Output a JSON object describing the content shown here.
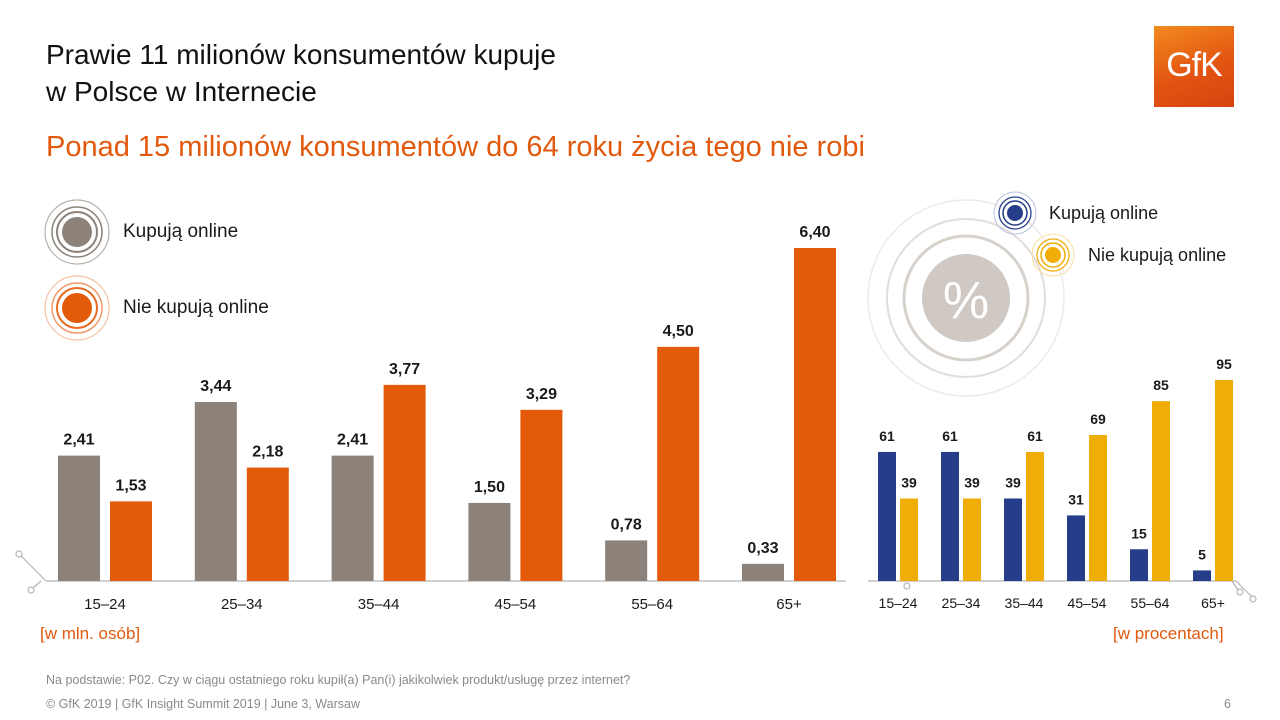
{
  "title_line1": "Prawie 11 milionów konsumentów kupuje",
  "title_line2": "w Polsce w Internecie",
  "subtitle": "Ponad 15 milionów konsumentów do 64 roku życia tego nie robi",
  "logo_text": "GfK",
  "percent_symbol": "%",
  "footnote": "Na podstawie: P02. Czy w ciągu ostatniego roku kupił(a) Pan(i) jakikolwiek produkt/usługę przez internet?",
  "copyright": "© GfK 2019 | GfK Insight Summit 2019 | June 3, Warsaw",
  "page_number": "6",
  "colors": {
    "online_left": "#8c8279",
    "offline_left": "#e35b0a",
    "online_right": "#263e8a",
    "offline_right": "#f0ad08",
    "accent": "#e0590c"
  },
  "chart_data": [
    {
      "type": "bar",
      "categories": [
        "15–24",
        "25–34",
        "35–44",
        "45–54",
        "55–64",
        "65+"
      ],
      "series": [
        {
          "name": "Kupują online",
          "values": [
            2.41,
            3.44,
            2.41,
            1.5,
            0.78,
            0.33
          ],
          "labels": [
            "2,41",
            "3,44",
            "2,41",
            "1,50",
            "0,78",
            "0,33"
          ]
        },
        {
          "name": "Nie kupują online",
          "values": [
            1.53,
            2.18,
            3.77,
            3.29,
            4.5,
            6.4
          ],
          "labels": [
            "1,53",
            "2,18",
            "3,77",
            "3,29",
            "4,50",
            "6,40"
          ]
        }
      ],
      "unit_label": "[w mln. osób]",
      "ylim": [
        0,
        6.4
      ],
      "legend_position": "top-left"
    },
    {
      "type": "bar",
      "categories": [
        "15–24",
        "25–34",
        "35–44",
        "45–54",
        "55–64",
        "65+"
      ],
      "series": [
        {
          "name": "Kupują online",
          "values": [
            61,
            61,
            39,
            31,
            15,
            5
          ],
          "labels": [
            "61",
            "61",
            "39",
            "31",
            "15",
            "5"
          ]
        },
        {
          "name": "Nie kupują online",
          "values": [
            39,
            39,
            61,
            69,
            85,
            95
          ],
          "labels": [
            "39",
            "39",
            "61",
            "69",
            "85",
            "95"
          ]
        }
      ],
      "unit_label": "[w procentach]",
      "ylim": [
        0,
        95
      ],
      "legend_position": "top-right"
    }
  ]
}
